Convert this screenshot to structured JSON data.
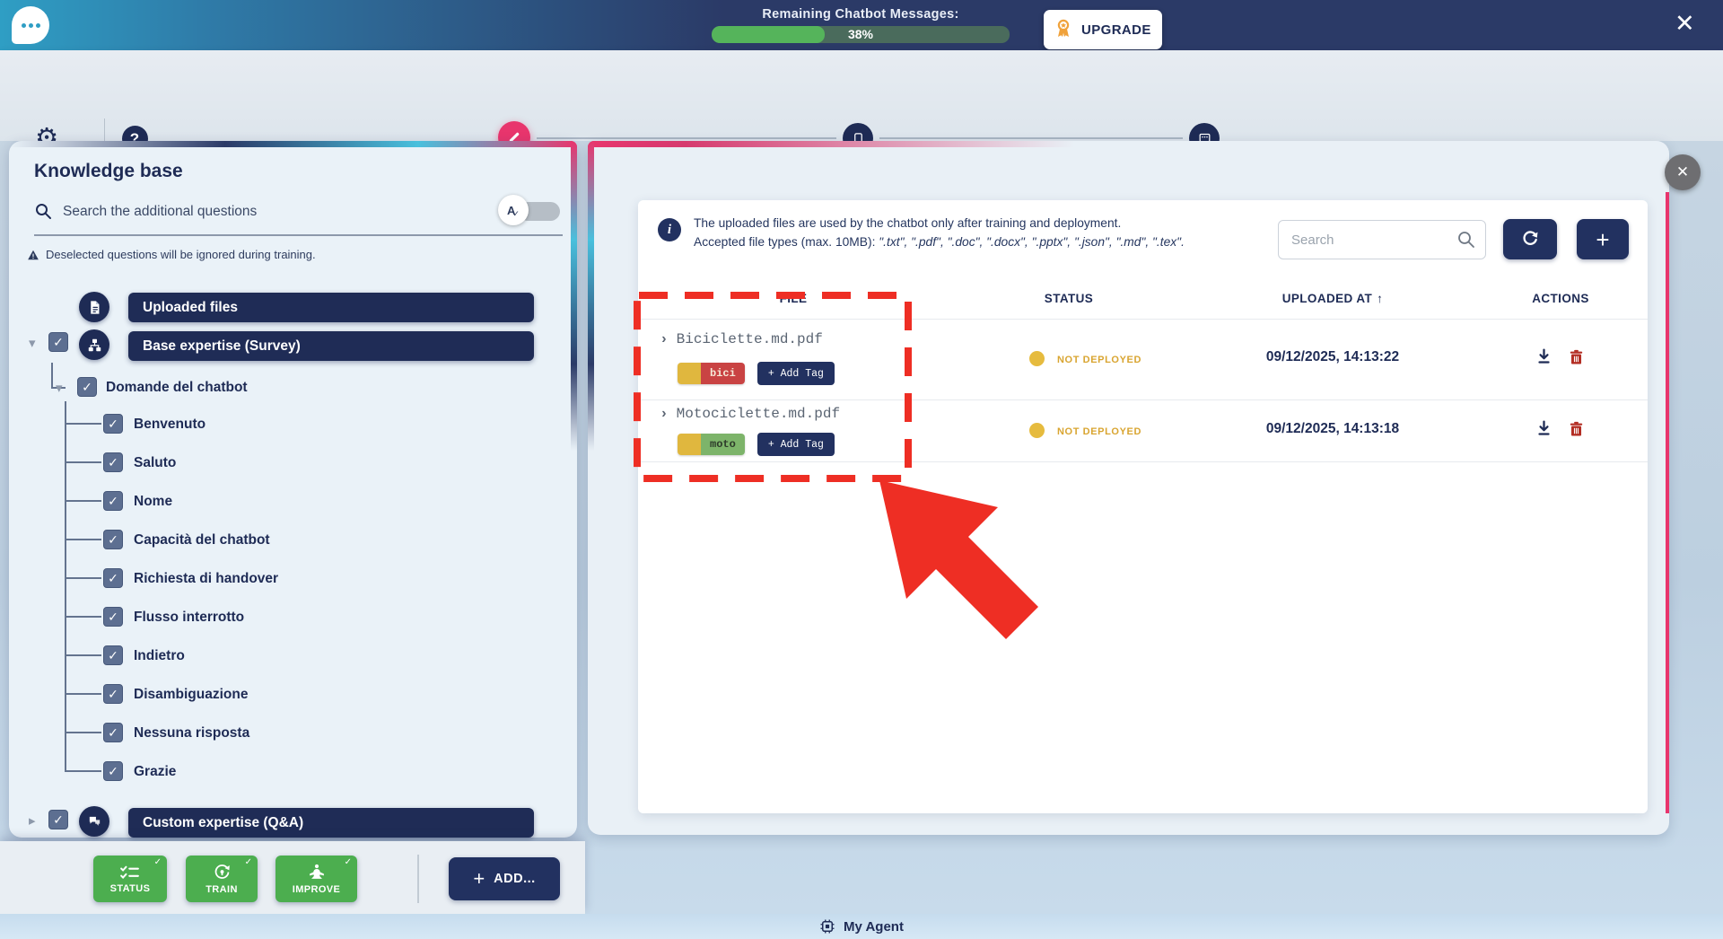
{
  "icons": {
    "close": "✕",
    "plus": "+",
    "sort_up": "↑",
    "chevron": "›",
    "caret_down": "▾",
    "caret_right": "▸",
    "help": "?",
    "info": "i",
    "check": "✓",
    "gear": "⚙",
    "toggle_letter": "A"
  },
  "topbar": {
    "remaining_label": "Remaining Chatbot Messages:",
    "progress_percent": 38,
    "progress_text": "38%",
    "progress_fill_color": "#55b45b",
    "upgrade": "UPGRADE"
  },
  "nav": {
    "setup": "Setup",
    "help": "Help",
    "steps": [
      {
        "label": "Teach"
      },
      {
        "label": "Preview"
      },
      {
        "label": "Deploy"
      }
    ],
    "active_color": "#e8356d"
  },
  "sidebar": {
    "title": "Knowledge base",
    "search_placeholder": "Search the additional questions",
    "warning": "Deselected questions will be ignored during training.",
    "uploaded_files": "Uploaded files",
    "base_expertise": "Base expertise (Survey)",
    "domande": "Domande del chatbot",
    "questions": [
      "Benvenuto",
      "Saluto",
      "Nome",
      "Capacità del chatbot",
      "Richiesta di handover",
      "Flusso interrotto",
      "Indietro",
      "Disambiguazione",
      "Nessuna risposta",
      "Grazie"
    ],
    "custom_expertise": "Custom expertise (Q&A)"
  },
  "footer": {
    "status": "STATUS",
    "train": "TRAIN",
    "improve": "IMPROVE",
    "add": "ADD...",
    "my_agent": "My Agent"
  },
  "panel": {
    "info_line1": "The uploaded files are used by the chatbot only after training and deployment.",
    "info_line2_label": "Accepted file types (max. 10MB):",
    "info_line2_types": "\".txt\", \".pdf\", \".doc\", \".docx\", \".pptx\", \".json\", \".md\", \".tex\".",
    "search_placeholder": "Search",
    "headers": {
      "file": "FILE",
      "status": "STATUS",
      "uploaded": "UPLOADED AT",
      "actions": "ACTIONS"
    },
    "tag_swatch": "#e0b73e",
    "status_dot_color": "#e6bb3e",
    "status_text_color": "#d9a531",
    "rows": [
      {
        "file": "Biciclette.md.pdf",
        "tag": "bici",
        "tag_bg": "#c94343",
        "tag_fg": "#f6e9d8",
        "add_tag": "+ Add Tag",
        "status": "NOT DEPLOYED",
        "uploaded_at": "09/12/2025, 14:13:22"
      },
      {
        "file": "Motociclette.md.pdf",
        "tag": "moto",
        "tag_bg": "#7db46a",
        "tag_fg": "#2d3a2a",
        "add_tag": "+ Add Tag",
        "status": "NOT DEPLOYED",
        "uploaded_at": "09/12/2025, 14:13:18"
      }
    ]
  }
}
